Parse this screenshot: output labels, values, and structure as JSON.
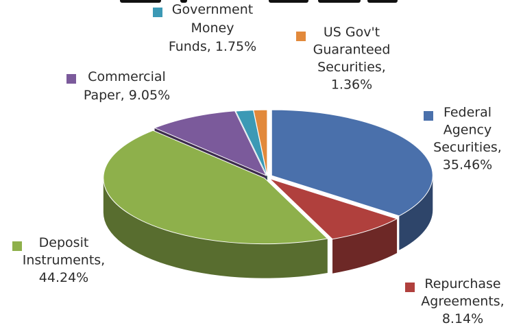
{
  "chart_data": {
    "type": "pie",
    "title": "",
    "three_d": true,
    "exploded": true,
    "slices": [
      {
        "name": "Federal Agency Securities",
        "value": 35.46,
        "color": "#4a70ab",
        "label_lines": [
          "Federal",
          "Agency",
          "Securities,",
          "35.46%"
        ]
      },
      {
        "name": "Repurchase Agreements",
        "value": 8.14,
        "color": "#b0403d",
        "label_lines": [
          "Repurchase",
          "Agreements,",
          "8.14%"
        ]
      },
      {
        "name": "Deposit Instruments",
        "value": 44.24,
        "color": "#8eb04b",
        "label_lines": [
          "Deposit",
          "Instruments,",
          "44.24%"
        ]
      },
      {
        "name": "Commercial Paper",
        "value": 9.05,
        "color": "#7b5a9b",
        "label_lines": [
          "Commercial",
          "Paper, 9.05%"
        ]
      },
      {
        "name": "Government Money Funds",
        "value": 1.75,
        "color": "#3c99b5",
        "label_lines": [
          "Government",
          "Money",
          "Funds, 1.75%"
        ]
      },
      {
        "name": "US Gov't Guaranteed Securities",
        "value": 1.36,
        "color": "#e2893b",
        "label_lines": [
          "US Gov't",
          "Guaranteed",
          "Securities,",
          "1.36%"
        ]
      }
    ]
  }
}
